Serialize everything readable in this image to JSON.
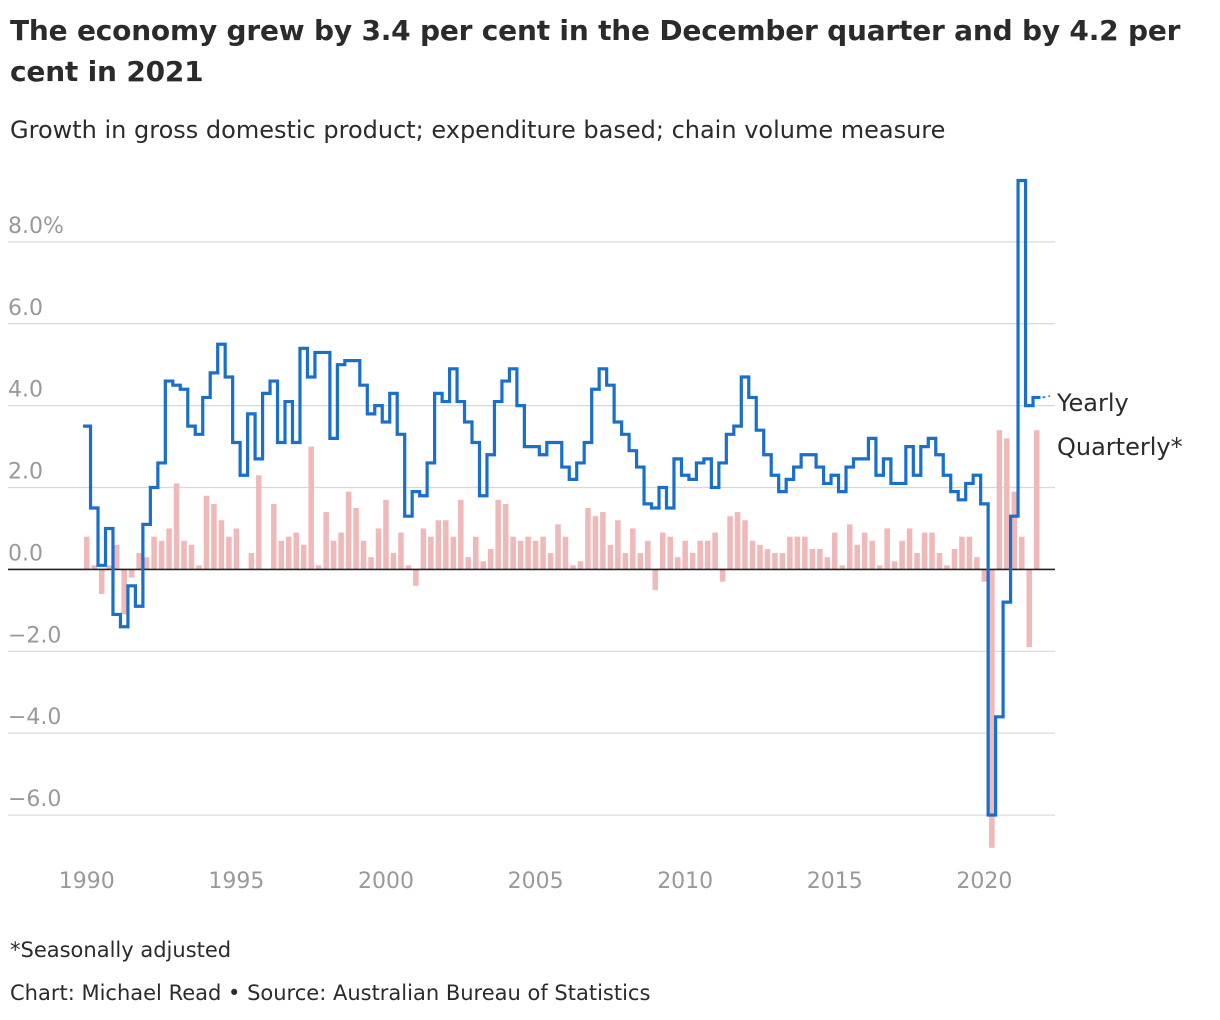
{
  "title": "The economy grew by 3.4 per cent in the December quarter and by 4.2 per cent in 2021",
  "subtitle": "Growth in gross domestic product; expenditure based; chain volume measure",
  "footnote": "*Seasonally adjusted",
  "credit": "Chart: Michael Read • Source: Australian Bureau of Statistics",
  "colors": {
    "yearly": "#1a6fc9",
    "quarterly": "#efb9b9",
    "grid": "#d8d8d8",
    "zero": "#222222",
    "ticks": "#999999"
  },
  "chart_data": {
    "type": "bar",
    "y_ticks": [
      {
        "value": 8,
        "label": "8.0%"
      },
      {
        "value": 6,
        "label": "6.0"
      },
      {
        "value": 4,
        "label": "4.0"
      },
      {
        "value": 2,
        "label": "2.0"
      },
      {
        "value": 0,
        "label": "0.0"
      },
      {
        "value": -2,
        "label": "−2.0"
      },
      {
        "value": -4,
        "label": "−4.0"
      },
      {
        "value": -6,
        "label": "−6.0"
      }
    ],
    "x_ticks": [
      {
        "value": 1990,
        "label": "1990"
      },
      {
        "value": 1995,
        "label": "1995"
      },
      {
        "value": 2000,
        "label": "2000"
      },
      {
        "value": 2005,
        "label": "2005"
      },
      {
        "value": 2010,
        "label": "2010"
      },
      {
        "value": 2015,
        "label": "2015"
      },
      {
        "value": 2020,
        "label": "2020"
      }
    ],
    "xlim": [
      1989.84,
      2022.36
    ],
    "ylim": [
      -7.0,
      10.0
    ],
    "x_start": 1990.0,
    "step": 0.25,
    "series": [
      {
        "name": "Quarterly*",
        "kind": "bar",
        "values": [
          0.8,
          0.1,
          -0.6,
          0.1,
          0.6,
          -1.1,
          -0.2,
          0.4,
          0.3,
          0.8,
          0.7,
          1.0,
          2.1,
          0.7,
          0.6,
          0.1,
          1.8,
          1.6,
          1.2,
          0.8,
          1.0,
          0.0,
          0.4,
          2.3,
          0.0,
          1.6,
          0.7,
          0.8,
          0.9,
          0.6,
          3.0,
          0.1,
          1.4,
          0.7,
          0.9,
          1.9,
          1.5,
          0.7,
          0.3,
          1.0,
          1.7,
          0.4,
          0.9,
          0.1,
          -0.4,
          1.0,
          0.8,
          1.2,
          1.2,
          0.8,
          1.7,
          0.3,
          0.8,
          0.2,
          0.5,
          1.7,
          1.6,
          0.8,
          0.7,
          0.8,
          0.7,
          0.8,
          0.4,
          1.1,
          0.8,
          0.1,
          0.2,
          1.5,
          1.3,
          1.4,
          0.6,
          1.2,
          0.4,
          1.0,
          0.4,
          0.7,
          -0.5,
          0.9,
          0.8,
          0.3,
          0.7,
          0.4,
          0.7,
          0.7,
          0.9,
          -0.3,
          1.3,
          1.4,
          1.2,
          0.7,
          0.6,
          0.5,
          0.4,
          0.4,
          0.8,
          0.8,
          0.8,
          0.5,
          0.5,
          0.3,
          0.9,
          0.1,
          1.1,
          0.6,
          0.9,
          0.7,
          0.1,
          1.0,
          0.2,
          0.7,
          1.0,
          0.4,
          0.9,
          0.9,
          0.4,
          0.1,
          0.5,
          0.8,
          0.8,
          0.3,
          -0.3,
          -6.8,
          3.4,
          3.2,
          1.9,
          0.8,
          -1.9,
          3.4
        ]
      },
      {
        "name": "Yearly",
        "kind": "step",
        "values": [
          3.5,
          1.5,
          0.1,
          1.0,
          -1.1,
          -1.4,
          -0.4,
          -0.9,
          1.1,
          2.0,
          2.6,
          4.6,
          4.5,
          4.4,
          3.5,
          3.3,
          4.2,
          4.8,
          5.5,
          4.7,
          3.1,
          2.3,
          3.8,
          2.7,
          4.3,
          4.6,
          3.1,
          4.1,
          3.1,
          5.4,
          4.7,
          5.3,
          5.3,
          3.2,
          5.0,
          5.1,
          5.1,
          4.5,
          3.8,
          4.0,
          3.6,
          4.3,
          3.3,
          1.3,
          1.9,
          1.8,
          2.6,
          4.3,
          4.1,
          4.9,
          4.1,
          3.6,
          3.1,
          1.8,
          2.8,
          4.1,
          4.6,
          4.9,
          4.0,
          3.0,
          3.0,
          2.8,
          3.1,
          3.1,
          2.5,
          2.2,
          2.6,
          3.1,
          4.4,
          4.9,
          4.5,
          3.6,
          3.3,
          2.9,
          2.5,
          1.6,
          1.5,
          2.0,
          1.5,
          2.7,
          2.3,
          2.2,
          2.6,
          2.7,
          2.0,
          2.6,
          3.3,
          3.5,
          4.7,
          4.2,
          3.4,
          2.8,
          2.3,
          1.9,
          2.2,
          2.5,
          2.8,
          2.8,
          2.5,
          2.1,
          2.3,
          1.9,
          2.5,
          2.7,
          2.7,
          3.2,
          2.3,
          2.7,
          2.1,
          2.1,
          3.0,
          2.3,
          3.0,
          3.2,
          2.8,
          2.3,
          1.9,
          1.7,
          2.1,
          2.3,
          1.6,
          -6.0,
          -3.6,
          -0.8,
          1.3,
          9.5,
          4.0,
          4.2
        ]
      }
    ],
    "legend": [
      {
        "series": "Yearly",
        "label": "Yearly",
        "placement": "right"
      },
      {
        "series": "Quarterly*",
        "label": "Quarterly*",
        "placement": "right"
      }
    ]
  }
}
